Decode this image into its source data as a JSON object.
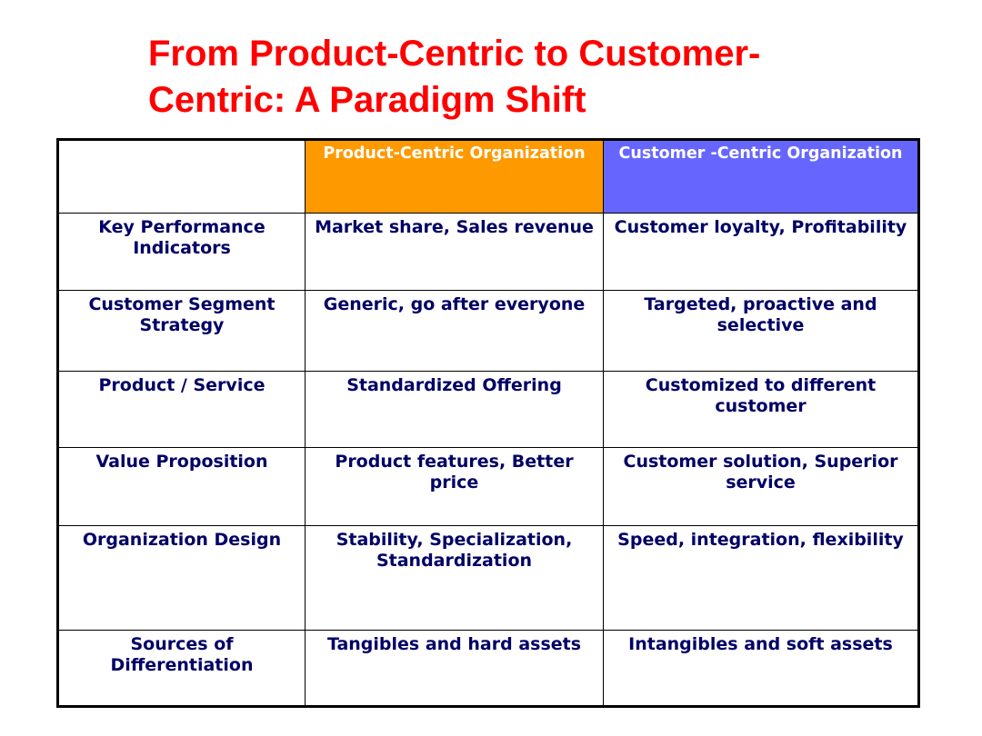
{
  "slide": {
    "title_lines": [
      "From Product-Centric to Customer-",
      "Centric: A Paradigm Shift"
    ]
  },
  "table": {
    "header": {
      "corner": "",
      "product": "Product-Centric Organization",
      "customer": "Customer -Centric Organization"
    },
    "rows": [
      {
        "label": "Key Performance Indicators",
        "product": "Market share, Sales revenue",
        "customer": "Customer loyalty, Profitability"
      },
      {
        "label": "Customer Segment Strategy",
        "product": "Generic, go after everyone",
        "customer": "Targeted, proactive and selective"
      },
      {
        "label": "Product / Service",
        "product": "Standardized Offering",
        "customer": "Customized to different customer"
      },
      {
        "label": "Value Proposition",
        "product": "Product features, Better price",
        "customer": "Customer solution, Superior service"
      },
      {
        "label": "Organization Design",
        "product": "Stability, Specialization, Standardization",
        "customer": "Speed, integration, flexibility"
      },
      {
        "label": "Sources of Differentiation",
        "product": "Tangibles and hard assets",
        "customer": "Intangibles and soft assets"
      }
    ]
  },
  "colors": {
    "title": "#ff0000",
    "product_header": "#ff9900",
    "customer_header": "#6666ff",
    "body_text": "#000066"
  }
}
